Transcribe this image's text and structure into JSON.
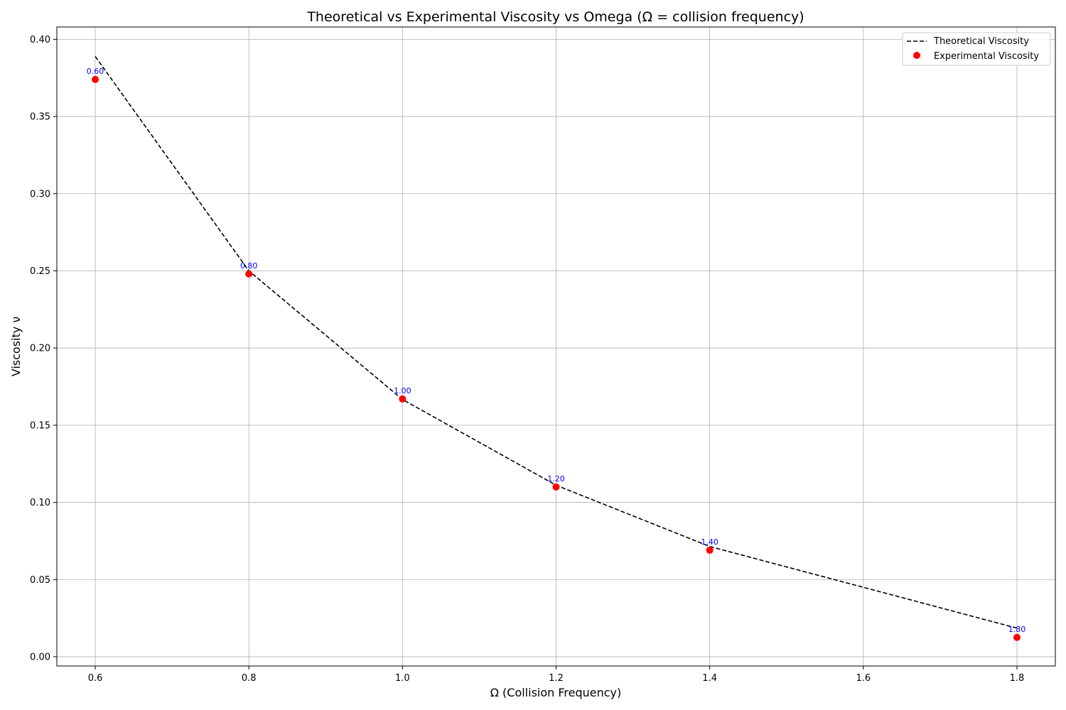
{
  "chart_data": {
    "type": "line",
    "title": "Theoretical vs Experimental Viscosity vs Omega (Ω = collision frequency)",
    "xlabel": "Ω (Collision Frequency)",
    "ylabel": "Viscosity ν",
    "xlim": [
      0.55,
      1.85
    ],
    "ylim": [
      -0.006,
      0.408
    ],
    "xticks": [
      0.6,
      0.8,
      1.0,
      1.2,
      1.4,
      1.6,
      1.8
    ],
    "xtick_labels": [
      "0.6",
      "0.8",
      "1.0",
      "1.2",
      "1.4",
      "1.6",
      "1.8"
    ],
    "yticks": [
      0.0,
      0.05,
      0.1,
      0.15,
      0.2,
      0.25,
      0.3,
      0.35,
      0.4
    ],
    "ytick_labels": [
      "0.00",
      "0.05",
      "0.10",
      "0.15",
      "0.20",
      "0.25",
      "0.30",
      "0.35",
      "0.40"
    ],
    "grid": true,
    "legend_position": "top-right",
    "series": [
      {
        "name": "Theoretical Viscosity",
        "kind": "line",
        "style": "dashed",
        "color": "#000000",
        "x": [
          0.6,
          0.8,
          1.0,
          1.2,
          1.4,
          1.8
        ],
        "y": [
          0.3889,
          0.25,
          0.1667,
          0.1111,
          0.0714,
          0.0185
        ]
      },
      {
        "name": "Experimental Viscosity",
        "kind": "scatter",
        "color": "#ff0000",
        "x": [
          0.6,
          0.8,
          1.0,
          1.2,
          1.4,
          1.8
        ],
        "y": [
          0.374,
          0.248,
          0.167,
          0.11,
          0.069,
          0.0125
        ]
      }
    ],
    "point_labels": [
      "0.60",
      "0.80",
      "1.00",
      "1.20",
      "1.40",
      "1.80"
    ],
    "point_label_color": "#0000ff"
  }
}
